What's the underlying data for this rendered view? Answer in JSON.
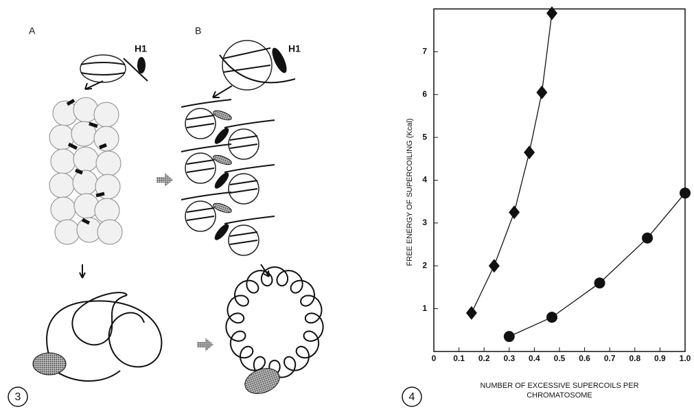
{
  "figure3": {
    "panel_labels": [
      "A",
      "B"
    ],
    "h1_labels": [
      "H1",
      "H1"
    ],
    "number": "3"
  },
  "chart_data": {
    "type": "scatter",
    "figure_number": "4",
    "xlabel_lines": [
      "NUMBER OF EXCESSIVE SUPERCOILS PER",
      "CHROMATOSOME"
    ],
    "ylabel": "FREE ENERGY OF SUPERCOILING (Kcal)",
    "xlim": [
      0,
      1
    ],
    "ylim": [
      0,
      8
    ],
    "xticks": [
      0,
      0.1,
      0.2,
      0.3,
      0.4,
      0.5,
      0.6,
      0.7,
      0.8,
      0.9,
      {
        "value": 1,
        "label": "1.0"
      }
    ],
    "yticks": [
      1,
      2,
      3,
      4,
      5,
      6,
      7
    ],
    "series": [
      {
        "marker": "diamond",
        "color": "#111111",
        "x": [
          0.15,
          0.24,
          0.32,
          0.38,
          0.43,
          0.47
        ],
        "values": [
          0.9,
          2.0,
          3.25,
          4.65,
          6.05,
          7.9
        ]
      },
      {
        "marker": "circle",
        "color": "#111111",
        "x": [
          0.3,
          0.47,
          0.66,
          0.85,
          1.0
        ],
        "values": [
          0.35,
          0.8,
          1.6,
          2.65,
          3.7
        ]
      }
    ]
  }
}
